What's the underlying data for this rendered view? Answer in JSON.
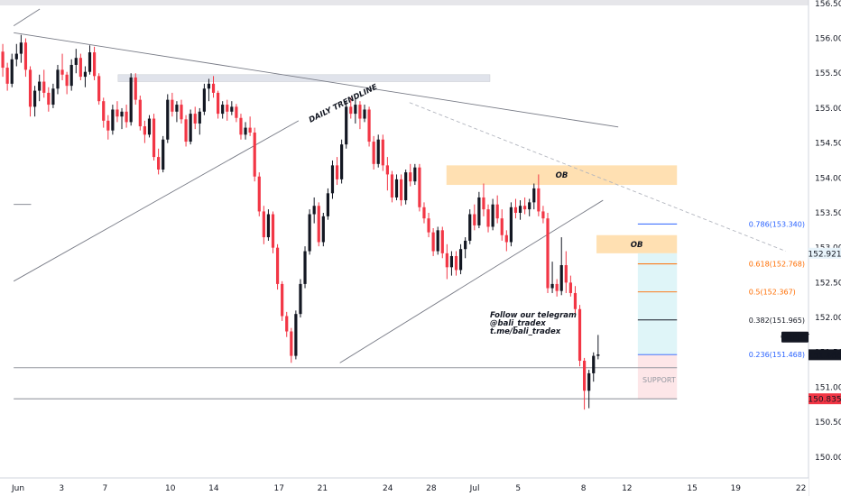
{
  "chart_data": {
    "type": "candlestick",
    "symbol": "GBPJPY",
    "last_price": "151.466",
    "price_scale": {
      "min": 149.7,
      "max": 156.55,
      "ticks": [
        "150.000",
        "150.500",
        "151.000",
        "151.500",
        "152.000",
        "152.500",
        "153.000",
        "153.500",
        "154.000",
        "154.500",
        "155.000",
        "155.500",
        "156.000",
        "156.500"
      ]
    },
    "x_axis": {
      "ticks": [
        {
          "label": "Jun",
          "day": 0
        },
        {
          "label": "3",
          "day": 2
        },
        {
          "label": "7",
          "day": 4
        },
        {
          "label": "10",
          "day": 7
        },
        {
          "label": "14",
          "day": 9
        },
        {
          "label": "17",
          "day": 12
        },
        {
          "label": "21",
          "day": 14
        },
        {
          "label": "24",
          "day": 17
        },
        {
          "label": "28",
          "day": 19
        },
        {
          "label": "Jul",
          "day": 21
        },
        {
          "label": "5",
          "day": 23
        },
        {
          "label": "8",
          "day": 26
        },
        {
          "label": "12",
          "day": 28
        },
        {
          "label": "15",
          "day": 31
        },
        {
          "label": "19",
          "day": 33
        },
        {
          "label": "22",
          "day": 36
        }
      ]
    },
    "price_badges": [
      {
        "label": "GBPJPY",
        "price": 151.72,
        "bg": "#131722",
        "fg": "#ffffff"
      },
      {
        "label": "151.466",
        "price": 151.466,
        "bg": "#131722",
        "fg": "#ffffff"
      },
      {
        "label": "152.921",
        "price": 152.921,
        "bg": "#e8f4fb",
        "fg": "#2962ff"
      },
      {
        "label": "150.835",
        "price": 150.835,
        "bg": "#f23645",
        "fg": "#ffffff"
      }
    ],
    "zones": [
      {
        "label": "",
        "x0": 4.6,
        "x1": 21.7,
        "y0": 155.38,
        "y1": 155.48,
        "color": "#e0e3eb"
      },
      {
        "label": "OB",
        "x0": 19.7,
        "x1": 30.3,
        "y0": 153.9,
        "y1": 154.18,
        "color": "#ffe0b2"
      },
      {
        "label": "OB",
        "x0": 26.6,
        "x1": 30.3,
        "y0": 152.92,
        "y1": 153.18,
        "color": "#ffe0b2"
      },
      {
        "label": "",
        "x0": 28.5,
        "x1": 30.3,
        "y0": 151.47,
        "y1": 152.92,
        "color": "#dff5f8"
      },
      {
        "label": "",
        "x0": 28.5,
        "x1": 30.3,
        "y0": 150.835,
        "y1": 151.47,
        "color": "#fde6e8"
      }
    ],
    "lines": [
      {
        "label": "DAILY TRENDLINE",
        "x0": -0.2,
        "y0": 156.08,
        "x1": 27.6,
        "y1": 154.73,
        "color": "#787b86",
        "dash": false
      },
      {
        "label": "",
        "x0": 18.0,
        "y0": 155.08,
        "x1": 35.3,
        "y1": 152.95,
        "color": "#b2b5be",
        "dash": true
      },
      {
        "label": "",
        "x0": -0.2,
        "y0": 152.52,
        "x1": 12.9,
        "y1": 154.82,
        "color": "#787b86",
        "dash": false
      },
      {
        "label": "",
        "x0": 14.8,
        "y0": 151.35,
        "x1": 26.9,
        "y1": 153.68,
        "color": "#787b86",
        "dash": false
      },
      {
        "label": "",
        "x0": -0.2,
        "y0": 151.28,
        "x1": 30.3,
        "y1": 151.28,
        "color": "#9598a1",
        "dash": false
      },
      {
        "label": "",
        "x0": -0.2,
        "y0": 150.835,
        "x1": 30.3,
        "y1": 150.835,
        "color": "#787b86",
        "dash": false
      },
      {
        "label": "",
        "x0": -0.2,
        "y0": 153.62,
        "x1": 0.6,
        "y1": 153.62,
        "color": "#787b86",
        "dash": false
      },
      {
        "label": "",
        "x0": -0.2,
        "y0": 156.18,
        "x1": 1.0,
        "y1": 156.42,
        "color": "#787b86",
        "dash": false
      }
    ],
    "fib_levels": [
      {
        "label": "0.786(153.340)",
        "price": 153.34,
        "color": "#2962ff"
      },
      {
        "label": "0.618(152.768)",
        "price": 152.768,
        "color": "#ff6d00"
      },
      {
        "label": "0.5(152.367)",
        "price": 152.367,
        "color": "#ff6d00"
      },
      {
        "label": "0.382(151.965)",
        "price": 151.965,
        "color": "#131722"
      },
      {
        "label": "0.236(151.468)",
        "price": 151.468,
        "color": "#2962ff"
      }
    ],
    "annotations": {
      "trendline": "DAILY TRENDLINE",
      "support": "SUPPORT",
      "telegram": [
        "Follow our telegram",
        "@bali_tradex",
        "t.me/bali_tradex"
      ]
    },
    "candles": [
      [
        155.98,
        156.05,
        155.72,
        155.81
      ],
      [
        155.81,
        155.92,
        155.45,
        155.58
      ],
      [
        155.58,
        155.65,
        155.25,
        155.35
      ],
      [
        155.35,
        155.78,
        155.3,
        155.7
      ],
      [
        155.7,
        155.92,
        155.6,
        155.78
      ],
      [
        155.78,
        156.05,
        155.65,
        155.94
      ],
      [
        155.94,
        156.0,
        155.45,
        155.55
      ],
      [
        155.55,
        155.6,
        154.88,
        155.02
      ],
      [
        155.02,
        155.32,
        154.88,
        155.25
      ],
      [
        155.25,
        155.48,
        155.1,
        155.38
      ],
      [
        155.38,
        155.55,
        155.15,
        155.22
      ],
      [
        155.22,
        155.3,
        154.95,
        155.05
      ],
      [
        155.05,
        155.35,
        155.0,
        155.28
      ],
      [
        155.28,
        155.62,
        155.2,
        155.55
      ],
      [
        155.55,
        155.78,
        155.4,
        155.48
      ],
      [
        155.48,
        155.52,
        155.2,
        155.32
      ],
      [
        155.32,
        155.7,
        155.25,
        155.62
      ],
      [
        155.62,
        155.85,
        155.5,
        155.72
      ],
      [
        155.72,
        155.78,
        155.4,
        155.45
      ],
      [
        155.45,
        155.6,
        155.3,
        155.52
      ],
      [
        155.52,
        155.9,
        155.48,
        155.8
      ],
      [
        155.8,
        155.88,
        155.4,
        155.46
      ],
      [
        155.46,
        155.5,
        155.05,
        155.1
      ],
      [
        155.1,
        155.15,
        154.72,
        154.82
      ],
      [
        154.82,
        154.9,
        154.55,
        154.68
      ],
      [
        154.68,
        155.05,
        154.62,
        154.98
      ],
      [
        154.98,
        155.1,
        154.8,
        154.88
      ],
      [
        154.88,
        155.0,
        154.7,
        154.95
      ],
      [
        154.95,
        155.05,
        154.72,
        154.8
      ],
      [
        154.8,
        155.5,
        154.75,
        155.44
      ],
      [
        155.44,
        155.5,
        155.05,
        155.12
      ],
      [
        155.12,
        155.18,
        154.68,
        154.74
      ],
      [
        154.74,
        154.82,
        154.5,
        154.62
      ],
      [
        154.62,
        154.9,
        154.58,
        154.85
      ],
      [
        154.85,
        154.92,
        154.25,
        154.3
      ],
      [
        154.3,
        154.42,
        154.05,
        154.12
      ],
      [
        154.12,
        154.6,
        154.08,
        154.55
      ],
      [
        154.55,
        155.2,
        154.5,
        155.12
      ],
      [
        155.12,
        155.22,
        154.88,
        154.95
      ],
      [
        154.95,
        155.1,
        154.8,
        155.05
      ],
      [
        155.05,
        155.12,
        154.78,
        154.84
      ],
      [
        154.84,
        154.9,
        154.45,
        154.52
      ],
      [
        154.52,
        154.98,
        154.48,
        154.92
      ],
      [
        154.92,
        155.02,
        154.7,
        154.78
      ],
      [
        154.78,
        155.0,
        154.62,
        154.95
      ],
      [
        154.95,
        155.35,
        154.9,
        155.28
      ],
      [
        155.28,
        155.42,
        155.1,
        155.35
      ],
      [
        155.35,
        155.46,
        155.15,
        155.22
      ],
      [
        155.22,
        155.25,
        154.85,
        154.92
      ],
      [
        154.92,
        155.1,
        154.85,
        155.05
      ],
      [
        155.05,
        155.12,
        154.82,
        154.95
      ],
      [
        154.95,
        155.1,
        154.9,
        155.02
      ],
      [
        155.02,
        155.06,
        154.8,
        154.86
      ],
      [
        154.86,
        154.92,
        154.55,
        154.62
      ],
      [
        154.62,
        154.8,
        154.55,
        154.72
      ],
      [
        154.72,
        154.88,
        154.6,
        154.65
      ],
      [
        154.65,
        154.72,
        153.95,
        154.02
      ],
      [
        154.02,
        154.08,
        153.45,
        153.52
      ],
      [
        153.52,
        153.6,
        153.05,
        153.15
      ],
      [
        153.15,
        153.55,
        153.1,
        153.48
      ],
      [
        153.48,
        153.52,
        152.92,
        153.0
      ],
      [
        153.0,
        153.05,
        152.4,
        152.48
      ],
      [
        152.48,
        152.52,
        151.95,
        152.02
      ],
      [
        152.02,
        152.08,
        151.72,
        151.8
      ],
      [
        151.8,
        151.85,
        151.35,
        151.45
      ],
      [
        151.45,
        152.1,
        151.4,
        152.05
      ],
      [
        152.05,
        152.55,
        152.0,
        152.48
      ],
      [
        152.48,
        153.02,
        152.42,
        152.95
      ],
      [
        152.95,
        153.55,
        152.9,
        153.48
      ],
      [
        153.48,
        153.72,
        153.35,
        153.6
      ],
      [
        153.6,
        153.65,
        153.02,
        153.08
      ],
      [
        153.08,
        153.5,
        153.02,
        153.45
      ],
      [
        153.45,
        153.85,
        153.4,
        153.78
      ],
      [
        153.78,
        154.25,
        153.7,
        154.18
      ],
      [
        154.18,
        154.3,
        153.9,
        153.98
      ],
      [
        153.98,
        154.55,
        153.92,
        154.48
      ],
      [
        154.48,
        155.1,
        154.42,
        155.02
      ],
      [
        155.02,
        155.15,
        154.85,
        154.92
      ],
      [
        154.92,
        155.12,
        154.78,
        155.05
      ],
      [
        155.05,
        155.1,
        154.7,
        154.85
      ],
      [
        154.85,
        155.05,
        154.8,
        154.98
      ],
      [
        154.98,
        155.02,
        154.45,
        154.52
      ],
      [
        154.52,
        154.6,
        154.12,
        154.2
      ],
      [
        154.2,
        154.62,
        154.15,
        154.55
      ],
      [
        154.55,
        154.62,
        154.1,
        154.18
      ],
      [
        154.18,
        154.3,
        153.82,
        154.05
      ],
      [
        154.05,
        154.1,
        153.65,
        153.72
      ],
      [
        153.72,
        154.05,
        153.68,
        153.98
      ],
      [
        153.98,
        154.05,
        153.6,
        153.68
      ],
      [
        153.68,
        154.12,
        153.62,
        154.08
      ],
      [
        154.08,
        154.2,
        153.88,
        153.95
      ],
      [
        153.95,
        154.2,
        153.9,
        154.15
      ],
      [
        154.15,
        154.2,
        153.52,
        153.58
      ],
      [
        153.58,
        153.65,
        153.35,
        153.42
      ],
      [
        153.42,
        153.5,
        153.15,
        153.22
      ],
      [
        153.22,
        153.28,
        152.88,
        152.95
      ],
      [
        152.95,
        153.3,
        152.9,
        153.25
      ],
      [
        153.25,
        153.3,
        152.85,
        152.92
      ],
      [
        152.92,
        153.05,
        152.55,
        152.72
      ],
      [
        152.72,
        152.95,
        152.6,
        152.88
      ],
      [
        152.88,
        152.95,
        152.6,
        152.68
      ],
      [
        152.68,
        153.05,
        152.62,
        152.98
      ],
      [
        152.98,
        153.15,
        152.85,
        153.1
      ],
      [
        153.1,
        153.55,
        153.05,
        153.48
      ],
      [
        153.48,
        153.62,
        153.25,
        153.32
      ],
      [
        153.32,
        153.8,
        153.28,
        153.72
      ],
      [
        153.72,
        153.92,
        153.45,
        153.55
      ],
      [
        153.55,
        153.62,
        153.22,
        153.3
      ],
      [
        153.3,
        153.7,
        153.25,
        153.62
      ],
      [
        153.62,
        153.75,
        153.35,
        153.42
      ],
      [
        153.42,
        153.55,
        153.1,
        153.18
      ],
      [
        153.18,
        153.25,
        152.95,
        153.08
      ],
      [
        153.08,
        153.65,
        153.02,
        153.58
      ],
      [
        153.58,
        153.7,
        153.42,
        153.5
      ],
      [
        153.5,
        153.68,
        153.4,
        153.6
      ],
      [
        153.6,
        153.72,
        153.48,
        153.55
      ],
      [
        153.55,
        153.7,
        153.45,
        153.65
      ],
      [
        153.65,
        153.92,
        153.55,
        153.85
      ],
      [
        153.85,
        154.05,
        153.45,
        153.52
      ],
      [
        153.52,
        153.6,
        153.35,
        153.42
      ],
      [
        153.42,
        153.5,
        152.35,
        152.42
      ],
      [
        152.42,
        152.8,
        152.35,
        152.48
      ],
      [
        152.48,
        152.55,
        152.3,
        152.38
      ],
      [
        152.38,
        153.15,
        152.32,
        152.75
      ],
      [
        152.75,
        152.95,
        152.35,
        152.5
      ],
      [
        152.5,
        152.6,
        152.3,
        152.35
      ],
      [
        152.35,
        152.45,
        152.05,
        152.12
      ],
      [
        152.12,
        152.18,
        151.3,
        151.38
      ],
      [
        151.38,
        151.42,
        150.68,
        150.95
      ],
      [
        150.95,
        151.25,
        150.7,
        151.2
      ],
      [
        151.2,
        151.5,
        151.08,
        151.45
      ],
      [
        151.45,
        151.75,
        151.4,
        151.47
      ]
    ]
  }
}
